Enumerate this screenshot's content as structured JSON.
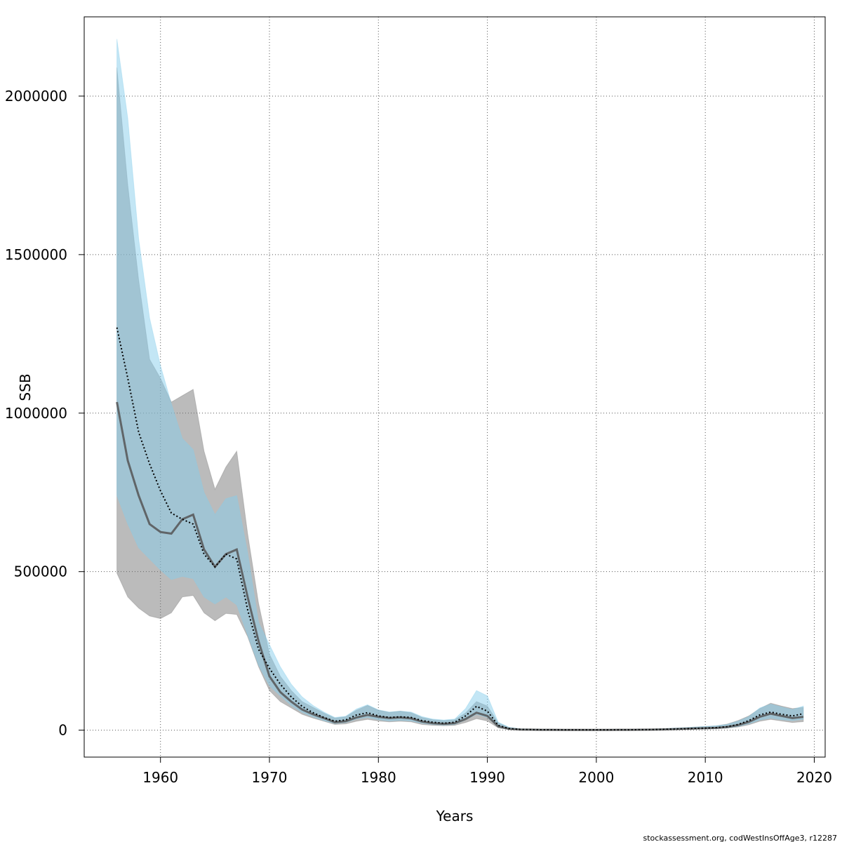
{
  "chart_data": {
    "type": "area",
    "title": "",
    "xlabel": "Years",
    "ylabel": "SSB",
    "xlim": [
      1953,
      2021
    ],
    "ylim": [
      -85000,
      2250000
    ],
    "x_ticks": [
      1960,
      1970,
      1980,
      1990,
      2000,
      2010,
      2020
    ],
    "y_ticks": [
      0,
      500000,
      1000000,
      1500000,
      2000000
    ],
    "grid": true,
    "legend": "none",
    "colors": {
      "band_grey": "#777777",
      "band_blue": "#87ceeb",
      "line_grey": "#555555",
      "line_dotted": "#000000",
      "grid": "#555555"
    },
    "x": [
      1956,
      1957,
      1958,
      1959,
      1960,
      1961,
      1962,
      1963,
      1964,
      1965,
      1966,
      1967,
      1968,
      1969,
      1970,
      1971,
      1972,
      1973,
      1974,
      1975,
      1976,
      1977,
      1978,
      1979,
      1980,
      1981,
      1982,
      1983,
      1984,
      1985,
      1986,
      1987,
      1988,
      1989,
      1990,
      1991,
      1992,
      1993,
      1994,
      1995,
      1996,
      1997,
      1998,
      1999,
      2000,
      2001,
      2002,
      2003,
      2004,
      2005,
      2006,
      2007,
      2008,
      2009,
      2010,
      2011,
      2012,
      2013,
      2014,
      2015,
      2016,
      2017,
      2018,
      2019
    ],
    "series": [
      {
        "values": [
          1035000,
          850000,
          740000,
          650000,
          625000,
          620000,
          665000,
          680000,
          570000,
          515000,
          555000,
          570000,
          420000,
          280000,
          170000,
          120000,
          90000,
          65000,
          50000,
          38000,
          25000,
          28000,
          40000,
          48000,
          42000,
          38000,
          40000,
          37000,
          27000,
          22000,
          20000,
          22000,
          35000,
          55000,
          45000,
          12000,
          4000,
          2000,
          1500,
          1200,
          1000,
          900,
          900,
          900,
          900,
          900,
          1000,
          1100,
          1300,
          1600,
          2200,
          3000,
          4000,
          5000,
          6000,
          7000,
          10000,
          16000,
          26000,
          42000,
          52000,
          45000,
          38000,
          42000
        ],
        "lower": [
          495000,
          420000,
          385000,
          360000,
          352000,
          370000,
          420000,
          425000,
          370000,
          345000,
          368000,
          365000,
          295000,
          200000,
          125000,
          90000,
          70000,
          50000,
          38000,
          28000,
          18000,
          20000,
          28000,
          34000,
          29000,
          26000,
          28000,
          26000,
          18000,
          15000,
          14000,
          15000,
          24000,
          36000,
          29000,
          7000,
          2000,
          1000,
          800,
          600,
          500,
          500,
          500,
          500,
          500,
          500,
          600,
          700,
          800,
          1000,
          1400,
          1900,
          2500,
          3100,
          3700,
          4300,
          6200,
          10000,
          17000,
          28000,
          34000,
          29000,
          24000,
          27000
        ],
        "upper": [
          2090000,
          1720000,
          1420000,
          1170000,
          1110000,
          1035000,
          1055000,
          1075000,
          880000,
          760000,
          830000,
          880000,
          620000,
          400000,
          240000,
          170000,
          125000,
          90000,
          72000,
          54000,
          38000,
          42000,
          63000,
          78000,
          63000,
          56000,
          60000,
          55000,
          40000,
          33000,
          30000,
          33000,
          54000,
          90000,
          76000,
          23000,
          8000,
          4000,
          3000,
          2500,
          2000,
          1800,
          1800,
          1800,
          1800,
          1800,
          2000,
          2200,
          2600,
          3200,
          4300,
          5800,
          7500,
          9500,
          11500,
          13500,
          19000,
          30000,
          45000,
          68000,
          85000,
          76000,
          68000,
          72000
        ]
      },
      {
        "values": [
          1270000,
          1110000,
          940000,
          840000,
          755000,
          685000,
          665000,
          650000,
          555000,
          515000,
          555000,
          540000,
          380000,
          255000,
          195000,
          145000,
          105000,
          75000,
          55000,
          40000,
          28000,
          32000,
          48000,
          55000,
          45000,
          40000,
          42000,
          40000,
          30000,
          25000,
          22000,
          25000,
          45000,
          75000,
          60000,
          15000,
          5000,
          2500,
          1800,
          1400,
          1200,
          1000,
          1000,
          1000,
          1000,
          1000,
          1100,
          1200,
          1500,
          1800,
          2500,
          3500,
          4500,
          5500,
          6500,
          8000,
          11000,
          18000,
          30000,
          48000,
          57000,
          50000,
          45000,
          52000
        ],
        "lower": [
          740000,
          650000,
          575000,
          540000,
          505000,
          475000,
          485000,
          478000,
          420000,
          398000,
          420000,
          395000,
          300000,
          205000,
          140000,
          108000,
          78000,
          56000,
          42000,
          30000,
          21000,
          24000,
          35000,
          40000,
          33000,
          29000,
          31000,
          29000,
          22000,
          18000,
          16000,
          18000,
          32000,
          50000,
          40000,
          10000,
          3000,
          1500,
          1000,
          800,
          700,
          600,
          600,
          600,
          600,
          600,
          700,
          800,
          900,
          1100,
          1500,
          2200,
          2800,
          3500,
          4100,
          5000,
          7000,
          12000,
          20000,
          32000,
          38000,
          33000,
          30000,
          34000
        ],
        "upper": [
          2180000,
          1930000,
          1550000,
          1300000,
          1150000,
          1030000,
          920000,
          885000,
          750000,
          680000,
          730000,
          740000,
          560000,
          340000,
          270000,
          200000,
          145000,
          105000,
          78000,
          57000,
          40000,
          44000,
          67000,
          80000,
          64000,
          57000,
          60000,
          57000,
          43000,
          35000,
          32000,
          35000,
          68000,
          125000,
          108000,
          25000,
          9000,
          4500,
          3400,
          2700,
          2200,
          1900,
          1900,
          1900,
          1900,
          1900,
          2100,
          2300,
          2800,
          3400,
          4500,
          6100,
          7800,
          9600,
          11600,
          13800,
          18000,
          28000,
          43000,
          70000,
          82000,
          73000,
          65000,
          76000
        ]
      }
    ]
  },
  "footer": "stockassessment.org, codWestInsOffAge3, r12287"
}
